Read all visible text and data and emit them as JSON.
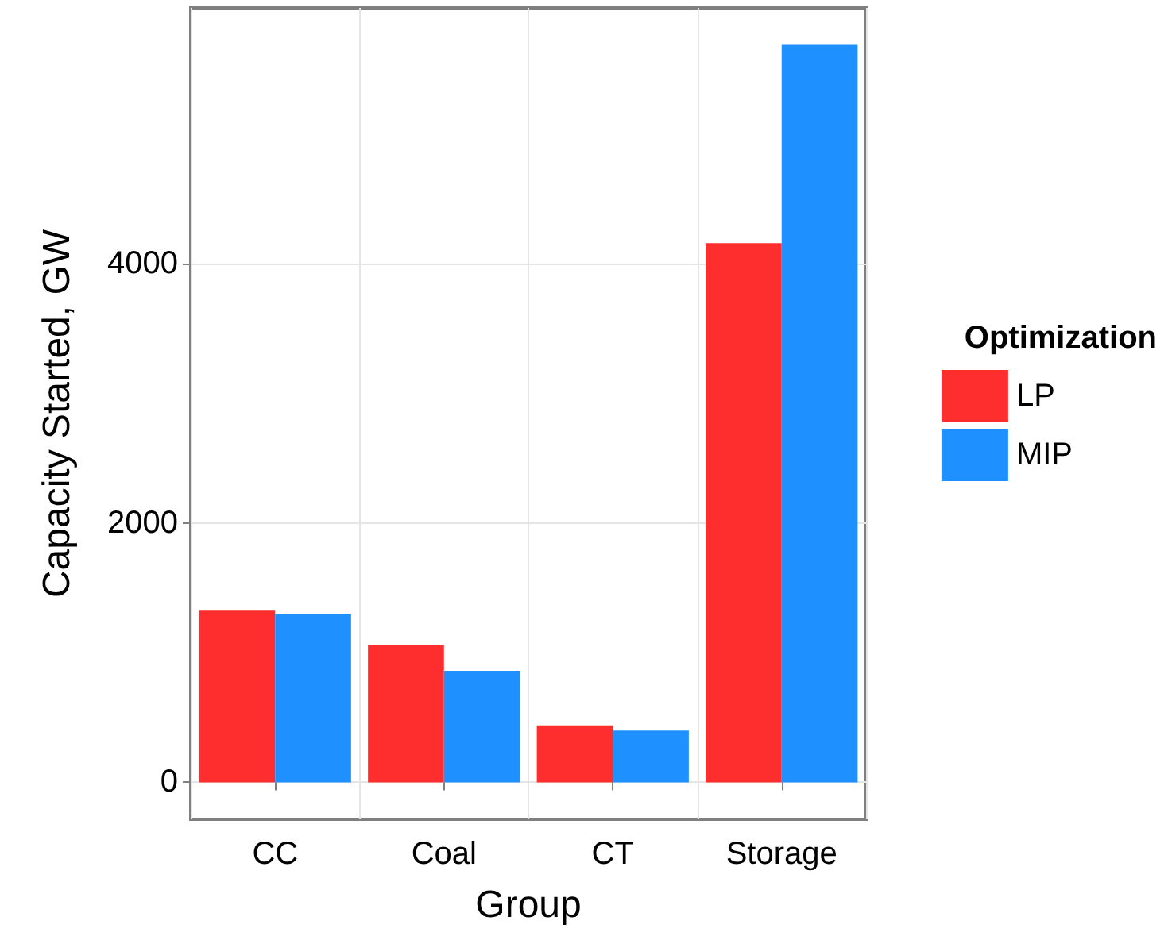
{
  "chart_data": {
    "type": "bar",
    "xlabel": "Group",
    "ylabel": "Capacity Started, GW",
    "legend_title": "Optimization",
    "categories": [
      "CC",
      "Coal",
      "CT",
      "Storage"
    ],
    "series": [
      {
        "name": "LP",
        "color": "#ff2e2e",
        "values": [
          1330,
          1060,
          440,
          4160
        ]
      },
      {
        "name": "MIP",
        "color": "#1e90ff",
        "values": [
          1300,
          860,
          400,
          5690
        ]
      }
    ],
    "ylim": [
      -285,
      5975
    ],
    "yticks": [
      0,
      2000,
      4000
    ],
    "grid": true,
    "legend": "right"
  }
}
